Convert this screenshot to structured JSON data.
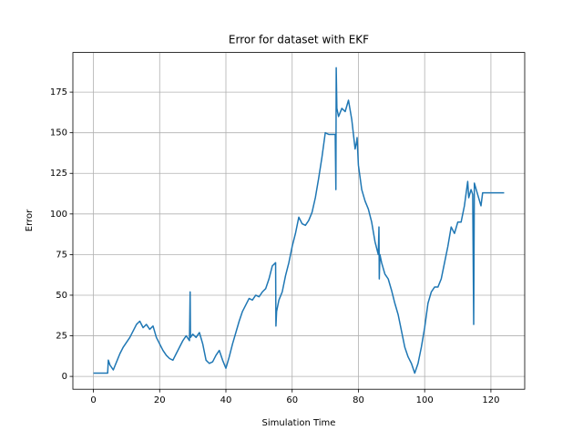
{
  "chart_data": {
    "type": "line",
    "title": "Error for dataset with EKF",
    "x_label": "Simulation Time",
    "y_label": "Error",
    "color": "#1f77b4",
    "grid": true,
    "xlim": [
      -6.2,
      130.2
    ],
    "ylim": [
      -7.9,
      199.4
    ],
    "xticks": [
      0,
      20,
      40,
      60,
      80,
      100,
      120
    ],
    "yticks": [
      0,
      25,
      50,
      75,
      100,
      125,
      150,
      175
    ],
    "x": [
      0,
      4.3,
      4.5,
      5,
      6,
      7,
      8,
      9,
      10,
      11,
      12,
      13,
      14,
      15,
      16,
      17,
      18,
      19,
      20,
      21,
      22,
      23,
      24,
      25,
      26,
      27,
      28,
      29,
      29.2,
      29.3,
      30,
      31,
      32,
      33,
      34,
      35,
      36,
      37,
      38,
      39,
      40,
      41,
      42,
      43,
      44,
      45,
      46,
      47,
      48,
      49,
      50,
      51,
      52,
      53,
      54,
      55,
      55.1,
      55.3,
      56,
      57,
      58,
      59,
      60,
      61,
      62,
      63,
      64,
      65,
      66,
      67,
      68,
      69,
      70,
      71,
      73,
      73.2,
      73.3,
      73.5,
      74,
      75,
      76,
      77,
      78,
      79,
      79.5,
      79.6,
      80,
      81,
      82,
      83,
      84,
      85,
      86,
      86.2,
      86.3,
      86.5,
      87,
      88,
      89,
      90,
      91,
      92,
      93,
      94,
      95,
      96,
      97,
      98,
      99,
      100,
      101,
      102,
      103,
      104,
      105,
      106,
      107,
      108,
      109,
      110,
      111,
      112,
      113,
      113.3,
      114,
      114.5,
      114.8,
      115,
      116,
      117,
      117.5,
      124
    ],
    "values": [
      2,
      2,
      10,
      7,
      4,
      9,
      14,
      18,
      21,
      24,
      28,
      32,
      34,
      30,
      32,
      29,
      31,
      24,
      20,
      16,
      13,
      11,
      10,
      14,
      18,
      22,
      25,
      22,
      52,
      24,
      26,
      24,
      27,
      20,
      10,
      8,
      9,
      13,
      16,
      10,
      5,
      12,
      20,
      27,
      34,
      40,
      44,
      48,
      47,
      50,
      49,
      52,
      54,
      60,
      68,
      70,
      31,
      40,
      47,
      52,
      62,
      70,
      80,
      88,
      98,
      94,
      93,
      96,
      101,
      110,
      122,
      135,
      150,
      149,
      149,
      115,
      190,
      165,
      160,
      165,
      163,
      170,
      158,
      140,
      145,
      147,
      130,
      115,
      108,
      103,
      95,
      83,
      75,
      92,
      60,
      75,
      70,
      63,
      60,
      53,
      45,
      38,
      28,
      18,
      12,
      8,
      2,
      8,
      18,
      30,
      45,
      52,
      55,
      55,
      60,
      70,
      80,
      92,
      88,
      95,
      95,
      105,
      120,
      110,
      115,
      112,
      32,
      119,
      112,
      105,
      113,
      113
    ]
  }
}
